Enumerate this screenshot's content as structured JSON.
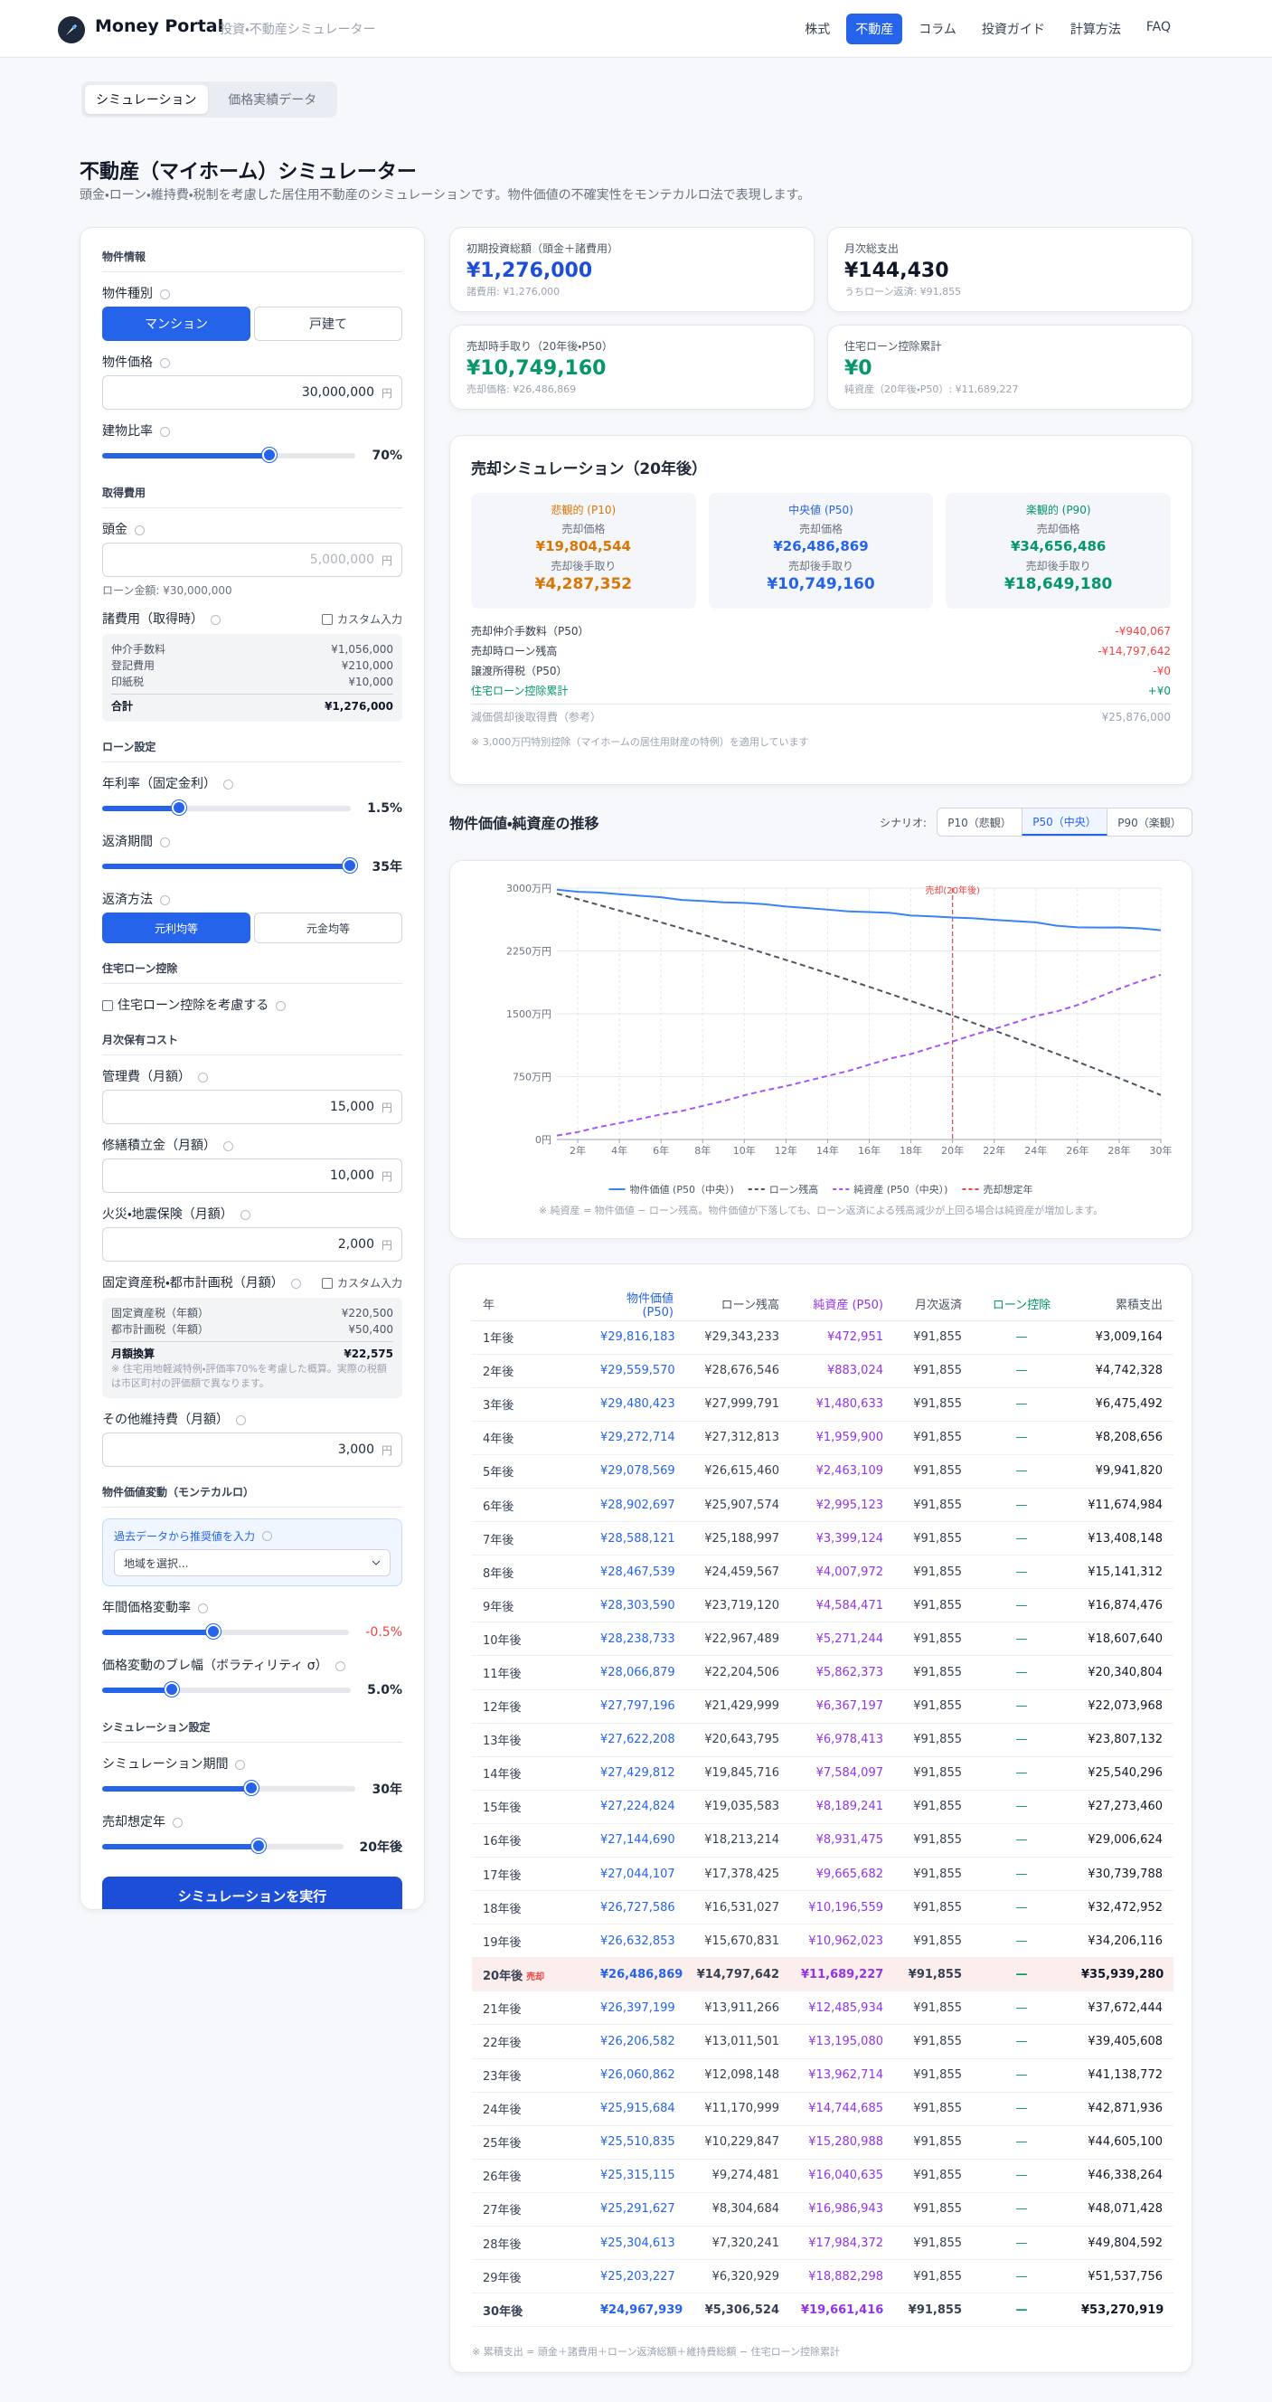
{
  "header": {
    "logo": "Money Portal",
    "subtitle": "投資・不動産シミュレーター",
    "nav": [
      "株式",
      "不動産",
      "コラム",
      "投資ガイド",
      "計算方法",
      "FAQ"
    ]
  },
  "tabs": [
    "シミュレーション",
    "価格実績データ"
  ],
  "page": {
    "title": "不動産（マイホーム）シミュレーター",
    "description": "頭金・ローン・維持費・税制を考慮した居住用不動産のシミュレーションです。物件価値の不確実性をモンテカルロ法で表現します。"
  },
  "form": {
    "sections": {
      "property": "物件情報",
      "acquisition": "取得費用",
      "loan": "ローン設定",
      "deduction": "住宅ローン控除",
      "monthly": "月次保有コスト",
      "monte_carlo": "物件価値変動（モンテカルロ）",
      "simulation": "シミュレーション設定"
    },
    "property_type": {
      "label": "物件種別",
      "options": [
        "マンション",
        "戸建て"
      ]
    },
    "price": {
      "label": "物件価格",
      "value": "30,000,000",
      "unit": "円"
    },
    "building_ratio": {
      "label": "建物比率",
      "value": "70%"
    },
    "down_payment": {
      "label": "頭金",
      "placeholder": "5,000,000",
      "unit": "円",
      "note": "ローン金額: ¥30,000,000"
    },
    "costs": {
      "label": "諸費用（取得時）",
      "custom": "カスタム入力",
      "items": [
        [
          "仲介手数料",
          "¥1,056,000"
        ],
        [
          "登記費用",
          "¥210,000"
        ],
        [
          "印紙税",
          "¥10,000"
        ]
      ],
      "total": [
        "合計",
        "¥1,276,000"
      ]
    },
    "rate": {
      "label": "年利率（固定金利）",
      "value": "1.5%"
    },
    "term": {
      "label": "返済期間",
      "value": "35年"
    },
    "method": {
      "label": "返済方法",
      "options": [
        "元利均等",
        "元金均等"
      ]
    },
    "deduction_check": "住宅ローン控除を考慮する",
    "management": {
      "label": "管理費（月額）",
      "value": "15,000",
      "unit": "円"
    },
    "repair": {
      "label": "修繕積立金（月額）",
      "value": "10,000",
      "unit": "円"
    },
    "insurance": {
      "label": "火災・地震保険（月額）",
      "value": "2,000",
      "unit": "円"
    },
    "tax": {
      "label": "固定資産税・都市計画税（月額）",
      "custom": "カスタム入力",
      "items": [
        [
          "固定資産税（年額）",
          "¥220,500"
        ],
        [
          "都市計画税（年額）",
          "¥50,400"
        ]
      ],
      "total": [
        "月額換算",
        "¥22,575"
      ],
      "note": "※ 住宅用地軽減特例・評価率70%を考慮した概算。実際の税額は市区町村の評価額で異なります。"
    },
    "other": {
      "label": "その他維持費（月額）",
      "value": "3,000",
      "unit": "円"
    },
    "preset": {
      "label": "過去データから推奨値を入力",
      "select": "地域を選択..."
    },
    "drift": {
      "label": "年間価格変動率",
      "value": "-0.5%"
    },
    "volatility": {
      "label": "価格変動のブレ幅（ボラティリティ σ）",
      "value": "5.0%"
    },
    "period": {
      "label": "シミュレーション期間",
      "value": "30年"
    },
    "sale_year": {
      "label": "売却想定年",
      "value": "20年後"
    },
    "run": "シミュレーションを実行"
  },
  "summary": [
    {
      "label": "初期投資総額（頭金＋諸費用）",
      "value": "¥1,276,000",
      "sub": "諸費用: ¥1,276,000"
    },
    {
      "label": "月次総支出",
      "value": "¥144,430",
      "sub": "うちローン返済: ¥91,855"
    },
    {
      "label": "売却時手取り（20年後・P50）",
      "value": "¥10,749,160",
      "sub": "売却価格: ¥26,486,869"
    },
    {
      "label": "住宅ローン控除累計",
      "value": "¥0",
      "sub": "純資産（20年後・P50）: ¥11,689,227"
    }
  ],
  "sale": {
    "title": "売却シミュレーション（20年後）",
    "scenarios": [
      {
        "name": "悲観的 (P10)",
        "price_label": "売却価格",
        "price": "¥19,804,544",
        "net_label": "売却後手取り",
        "net": "¥4,287,352"
      },
      {
        "name": "中央値 (P50)",
        "price_label": "売却価格",
        "price": "¥26,486,869",
        "net_label": "売却後手取り",
        "net": "¥10,749,160"
      },
      {
        "name": "楽観的 (P90)",
        "price_label": "売却価格",
        "price": "¥34,656,486",
        "net_label": "売却後手取り",
        "net": "¥18,649,180"
      }
    ],
    "rows": [
      [
        "売却仲介手数料（P50）",
        "-¥940,067"
      ],
      [
        "売却時ローン残高",
        "-¥14,797,642"
      ],
      [
        "譲渡所得税（P50）",
        "-¥0"
      ],
      [
        "住宅ローン控除累計",
        "+¥0"
      ],
      [
        "減価償却後取得費（参考）",
        "¥25,876,000"
      ]
    ],
    "note": "※ 3,000万円特別控除（マイホームの居住用財産の特例）を適用しています"
  },
  "chart_section": {
    "scenario_label": "シナリオ:",
    "scenarios": [
      "P10（悲観）",
      "P50（中央）",
      "P90（楽観）"
    ]
  },
  "chart_data": {
    "type": "line",
    "title": "物件価値・純資産の推移",
    "x": [
      1,
      2,
      3,
      4,
      5,
      6,
      7,
      8,
      9,
      10,
      11,
      12,
      13,
      14,
      15,
      16,
      17,
      18,
      19,
      20,
      21,
      22,
      23,
      24,
      25,
      26,
      27,
      28,
      29,
      30
    ],
    "xlim": [
      1,
      30
    ],
    "xticks": [
      {
        "value": 2,
        "label": "2年"
      },
      {
        "value": 4,
        "label": "4年"
      },
      {
        "value": 6,
        "label": "6年"
      },
      {
        "value": 8,
        "label": "8年"
      },
      {
        "value": 10,
        "label": "10年"
      },
      {
        "value": 12,
        "label": "12年"
      },
      {
        "value": 14,
        "label": "14年"
      },
      {
        "value": 16,
        "label": "16年"
      },
      {
        "value": 18,
        "label": "18年"
      },
      {
        "value": 20,
        "label": "20年"
      },
      {
        "value": 22,
        "label": "22年"
      },
      {
        "value": 24,
        "label": "24年"
      },
      {
        "value": 26,
        "label": "26年"
      },
      {
        "value": 28,
        "label": "28年"
      },
      {
        "value": 30,
        "label": "30年"
      }
    ],
    "ylim": [
      0,
      3000
    ],
    "yticks": [
      {
        "value": 0,
        "label": "0円"
      },
      {
        "value": 750,
        "label": "750万円"
      },
      {
        "value": 1500,
        "label": "1500万円"
      },
      {
        "value": 2250,
        "label": "2250万円"
      },
      {
        "value": 3000,
        "label": "3000万円"
      }
    ],
    "grid": true,
    "series": [
      {
        "name": "物件価値 (P50（中央）)",
        "color": "#3b82f6",
        "dash": false,
        "values": [
          2981.6,
          2956,
          2948,
          2927.3,
          2907.9,
          2890.3,
          2858.8,
          2846.8,
          2830.4,
          2823.9,
          2806.7,
          2779.7,
          2762.2,
          2743,
          2722.5,
          2714.5,
          2704.4,
          2672.8,
          2663.3,
          2648.7,
          2639.7,
          2620.7,
          2606.1,
          2591.6,
          2551.1,
          2531.5,
          2529.2,
          2530.5,
          2520.3,
          2496.8
        ]
      },
      {
        "name": "ローン残高",
        "color": "#4b5563",
        "dash": true,
        "values": [
          2934.3,
          2867.7,
          2800,
          2731.3,
          2661.5,
          2590.8,
          2518.9,
          2446,
          2372,
          2296.7,
          2220.5,
          2143,
          2064.4,
          1984.6,
          1903.6,
          1821.3,
          1737.8,
          1653.1,
          1567.1,
          1479.8,
          1391.1,
          1301.2,
          1209.8,
          1117.1,
          1023,
          927.4,
          830.5,
          732,
          632.1,
          530.7
        ]
      },
      {
        "name": "純資産 (P50（中央）)",
        "color": "#a855f7",
        "dash": true,
        "values": [
          47.3,
          88.3,
          148.1,
          196,
          246.3,
          299.5,
          339.9,
          400.8,
          458.4,
          527.1,
          586.2,
          636.7,
          697.8,
          758.4,
          818.9,
          893.1,
          966.6,
          1019.7,
          1096.2,
          1168.9,
          1248.6,
          1319.5,
          1396.3,
          1474.5,
          1528.1,
          1604.1,
          1698.7,
          1798.4,
          1888.2,
          1966.1
        ]
      }
    ],
    "sale_marker": {
      "x": 20,
      "label": "売却(20年後)",
      "name": "売却想定年",
      "color": "#ef4444"
    },
    "note": "※ 純資産 = 物件価値 − ローン残高。物件価値が下落しても、ローン返済による残高減少が上回る場合は純資産が増加します。"
  },
  "table": {
    "header": [
      "年",
      "物件価値 (P50)",
      "ローン残高",
      "純資産 (P50)",
      "月次返済",
      "ローン控除",
      "累積支出"
    ],
    "sale_badge": "売却",
    "rows": [
      [
        "1年後",
        "¥29,816,183",
        "¥29,343,233",
        "¥472,951",
        "¥91,855",
        "—",
        "¥3,009,164"
      ],
      [
        "2年後",
        "¥29,559,570",
        "¥28,676,546",
        "¥883,024",
        "¥91,855",
        "—",
        "¥4,742,328"
      ],
      [
        "3年後",
        "¥29,480,423",
        "¥27,999,791",
        "¥1,480,633",
        "¥91,855",
        "—",
        "¥6,475,492"
      ],
      [
        "4年後",
        "¥29,272,714",
        "¥27,312,813",
        "¥1,959,900",
        "¥91,855",
        "—",
        "¥8,208,656"
      ],
      [
        "5年後",
        "¥29,078,569",
        "¥26,615,460",
        "¥2,463,109",
        "¥91,855",
        "—",
        "¥9,941,820"
      ],
      [
        "6年後",
        "¥28,902,697",
        "¥25,907,574",
        "¥2,995,123",
        "¥91,855",
        "—",
        "¥11,674,984"
      ],
      [
        "7年後",
        "¥28,588,121",
        "¥25,188,997",
        "¥3,399,124",
        "¥91,855",
        "—",
        "¥13,408,148"
      ],
      [
        "8年後",
        "¥28,467,539",
        "¥24,459,567",
        "¥4,007,972",
        "¥91,855",
        "—",
        "¥15,141,312"
      ],
      [
        "9年後",
        "¥28,303,590",
        "¥23,719,120",
        "¥4,584,471",
        "¥91,855",
        "—",
        "¥16,874,476"
      ],
      [
        "10年後",
        "¥28,238,733",
        "¥22,967,489",
        "¥5,271,244",
        "¥91,855",
        "—",
        "¥18,607,640"
      ],
      [
        "11年後",
        "¥28,066,879",
        "¥22,204,506",
        "¥5,862,373",
        "¥91,855",
        "—",
        "¥20,340,804"
      ],
      [
        "12年後",
        "¥27,797,196",
        "¥21,429,999",
        "¥6,367,197",
        "¥91,855",
        "—",
        "¥22,073,968"
      ],
      [
        "13年後",
        "¥27,622,208",
        "¥20,643,795",
        "¥6,978,413",
        "¥91,855",
        "—",
        "¥23,807,132"
      ],
      [
        "14年後",
        "¥27,429,812",
        "¥19,845,716",
        "¥7,584,097",
        "¥91,855",
        "—",
        "¥25,540,296"
      ],
      [
        "15年後",
        "¥27,224,824",
        "¥19,035,583",
        "¥8,189,241",
        "¥91,855",
        "—",
        "¥27,273,460"
      ],
      [
        "16年後",
        "¥27,144,690",
        "¥18,213,214",
        "¥8,931,475",
        "¥91,855",
        "—",
        "¥29,006,624"
      ],
      [
        "17年後",
        "¥27,044,107",
        "¥17,378,425",
        "¥9,665,682",
        "¥91,855",
        "—",
        "¥30,739,788"
      ],
      [
        "18年後",
        "¥26,727,586",
        "¥16,531,027",
        "¥10,196,559",
        "¥91,855",
        "—",
        "¥32,472,952"
      ],
      [
        "19年後",
        "¥26,632,853",
        "¥15,670,831",
        "¥10,962,023",
        "¥91,855",
        "—",
        "¥34,206,116"
      ],
      [
        "20年後",
        "¥26,486,869",
        "¥14,797,642",
        "¥11,689,227",
        "¥91,855",
        "—",
        "¥35,939,280"
      ],
      [
        "21年後",
        "¥26,397,199",
        "¥13,911,266",
        "¥12,485,934",
        "¥91,855",
        "—",
        "¥37,672,444"
      ],
      [
        "22年後",
        "¥26,206,582",
        "¥13,011,501",
        "¥13,195,080",
        "¥91,855",
        "—",
        "¥39,405,608"
      ],
      [
        "23年後",
        "¥26,060,862",
        "¥12,098,148",
        "¥13,962,714",
        "¥91,855",
        "—",
        "¥41,138,772"
      ],
      [
        "24年後",
        "¥25,915,684",
        "¥11,170,999",
        "¥14,744,685",
        "¥91,855",
        "—",
        "¥42,871,936"
      ],
      [
        "25年後",
        "¥25,510,835",
        "¥10,229,847",
        "¥15,280,988",
        "¥91,855",
        "—",
        "¥44,605,100"
      ],
      [
        "26年後",
        "¥25,315,115",
        "¥9,274,481",
        "¥16,040,635",
        "¥91,855",
        "—",
        "¥46,338,264"
      ],
      [
        "27年後",
        "¥25,291,627",
        "¥8,304,684",
        "¥16,986,943",
        "¥91,855",
        "—",
        "¥48,071,428"
      ],
      [
        "28年後",
        "¥25,304,613",
        "¥7,320,241",
        "¥17,984,372",
        "¥91,855",
        "—",
        "¥49,804,592"
      ],
      [
        "29年後",
        "¥25,203,227",
        "¥6,320,929",
        "¥18,882,298",
        "¥91,855",
        "—",
        "¥51,537,756"
      ],
      [
        "30年後",
        "¥24,967,939",
        "¥5,306,524",
        "¥19,661,416",
        "¥91,855",
        "—",
        "¥53,270,919"
      ]
    ],
    "note": "※ 累積支出 = 頭金＋諸費用＋ローン返済総額＋維持費総額 − 住宅ローン控除累計"
  }
}
